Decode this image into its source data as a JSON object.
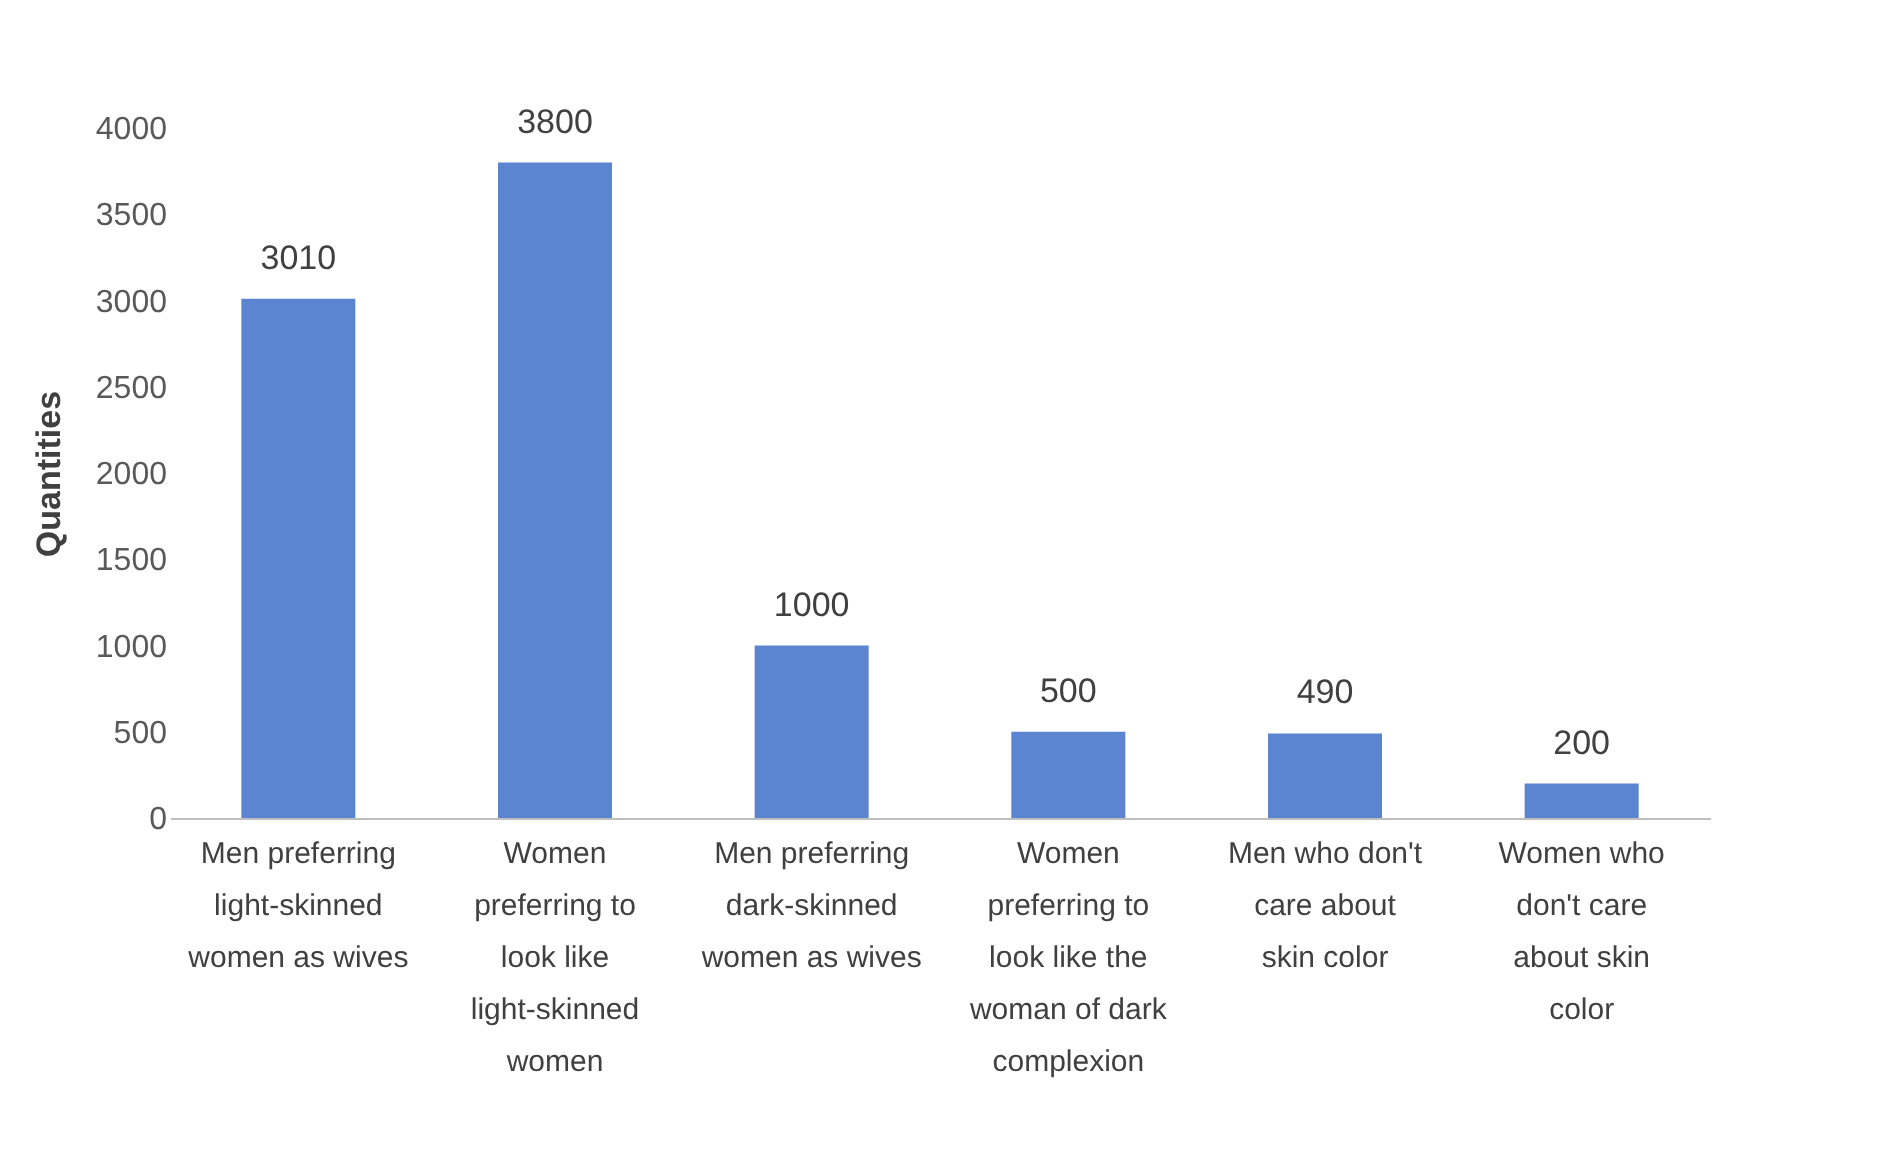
{
  "chart_data": {
    "type": "bar",
    "ylabel": "Quantities",
    "categories": [
      "Men preferring light-skinned women as wives",
      "Women preferring to look like light-skinned women",
      "Men preferring dark-skinned women as wives",
      "Women preferring to look like the woman of dark complexion",
      "Men who don't care about skin color",
      "Women who don't care about skin color"
    ],
    "values": [
      3010,
      3800,
      1000,
      500,
      490,
      200
    ],
    "color": "#5b85d1",
    "ylim": [
      0,
      4000
    ],
    "yticks": [
      0,
      500,
      1000,
      1500,
      2000,
      2500,
      3000,
      3500,
      4000
    ],
    "grid": false,
    "data_labels": true
  }
}
